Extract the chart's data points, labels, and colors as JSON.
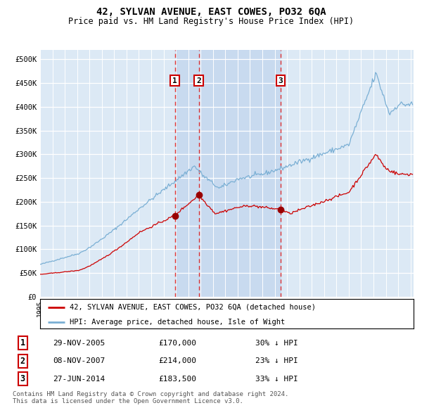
{
  "title": "42, SYLVAN AVENUE, EAST COWES, PO32 6QA",
  "subtitle": "Price paid vs. HM Land Registry's House Price Index (HPI)",
  "bg_color": "#dce9f5",
  "line_color_red": "#cc0000",
  "line_color_blue": "#7aafd4",
  "sale_dates": [
    "2005-11-29",
    "2007-11-08",
    "2014-06-27"
  ],
  "sale_prices": [
    170000,
    214000,
    183500
  ],
  "sale_labels": [
    "1",
    "2",
    "3"
  ],
  "legend_label_red": "42, SYLVAN AVENUE, EAST COWES, PO32 6QA (detached house)",
  "legend_label_blue": "HPI: Average price, detached house, Isle of Wight",
  "table_entries": [
    [
      "1",
      "29-NOV-2005",
      "£170,000",
      "30% ↓ HPI"
    ],
    [
      "2",
      "08-NOV-2007",
      "£214,000",
      "23% ↓ HPI"
    ],
    [
      "3",
      "27-JUN-2014",
      "£183,500",
      "33% ↓ HPI"
    ]
  ],
  "footer": "Contains HM Land Registry data © Crown copyright and database right 2024.\nThis data is licensed under the Open Government Licence v3.0.",
  "ylim": [
    0,
    520000
  ],
  "yticks": [
    0,
    50000,
    100000,
    150000,
    200000,
    250000,
    300000,
    350000,
    400000,
    450000,
    500000
  ],
  "ytick_labels": [
    "£0",
    "£50K",
    "£100K",
    "£150K",
    "£200K",
    "£250K",
    "£300K",
    "£350K",
    "£400K",
    "£450K",
    "£500K"
  ],
  "vline_color": "#dd3333",
  "shade_color": "#c5d8ef",
  "marker_color": "#990000"
}
